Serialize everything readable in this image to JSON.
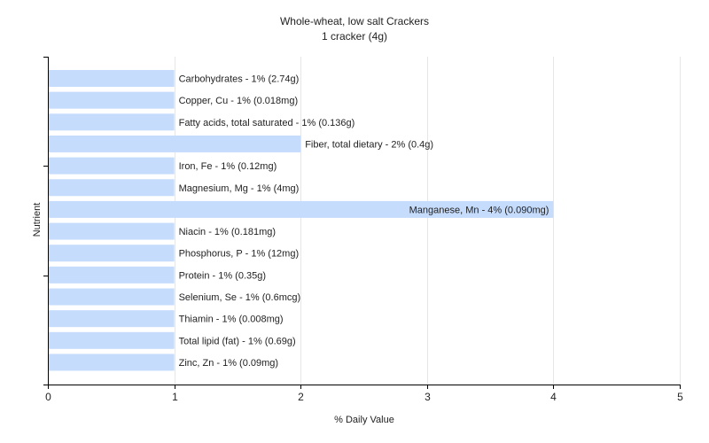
{
  "chart_data": {
    "type": "bar",
    "orientation": "horizontal",
    "title": "Whole-wheat, low salt Crackers",
    "subtitle": "1 cracker (4g)",
    "xlabel": "% Daily Value",
    "ylabel": "Nutrient",
    "xlim": [
      0,
      5
    ],
    "xticks": [
      0,
      1,
      2,
      3,
      4,
      5
    ],
    "grid": true,
    "bar_color": "#c6dcfc",
    "categories": [
      "Carbohydrates",
      "Copper, Cu",
      "Fatty acids, total saturated",
      "Fiber, total dietary",
      "Iron, Fe",
      "Magnesium, Mg",
      "Manganese, Mn",
      "Niacin",
      "Phosphorus, P",
      "Protein",
      "Selenium, Se",
      "Thiamin",
      "Total lipid (fat)",
      "Zinc, Zn"
    ],
    "values": [
      1,
      1,
      1,
      2,
      1,
      1,
      4,
      1,
      1,
      1,
      1,
      1,
      1,
      1
    ],
    "labels": [
      "Carbohydrates - 1% (2.74g)",
      "Copper, Cu - 1% (0.018mg)",
      "Fatty acids, total saturated - 1% (0.136g)",
      "Fiber, total dietary - 2% (0.4g)",
      "Iron, Fe - 1% (0.12mg)",
      "Magnesium, Mg - 1% (4mg)",
      "Manganese, Mn - 4% (0.090mg)",
      "Niacin - 1% (0.181mg)",
      "Phosphorus, P - 1% (12mg)",
      "Protein - 1% (0.35g)",
      "Selenium, Se - 1% (0.6mcg)",
      "Thiamin - 1% (0.008mg)",
      "Total lipid (fat) - 1% (0.69g)",
      "Zinc, Zn - 1% (0.09mg)"
    ]
  }
}
